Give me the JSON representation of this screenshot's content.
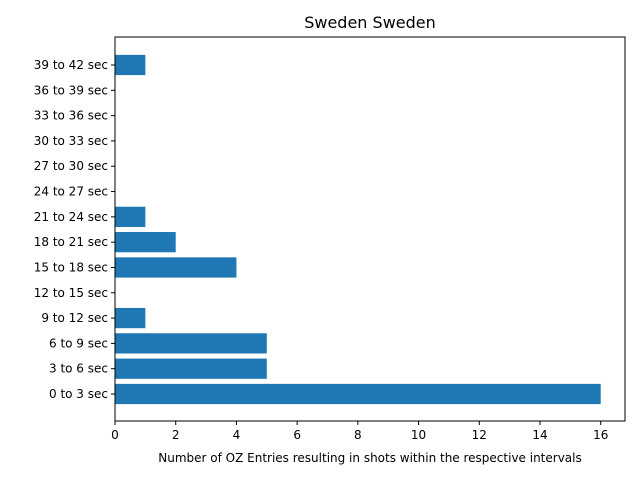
{
  "chart_data": {
    "type": "bar",
    "orientation": "horizontal",
    "title": "Sweden Sweden",
    "xlabel": "Number of OZ Entries resulting in shots within the respective intervals",
    "ylabel": "",
    "categories": [
      "0 to 3 sec",
      "3 to 6 sec",
      "6 to 9 sec",
      "9 to 12 sec",
      "12 to 15 sec",
      "15 to 18 sec",
      "18 to 21 sec",
      "21 to 24 sec",
      "24 to 27 sec",
      "27 to 30 sec",
      "30 to 33 sec",
      "33 to 36 sec",
      "36 to 39 sec",
      "39 to 42 sec"
    ],
    "values": [
      16,
      5,
      5,
      1,
      0,
      4,
      2,
      1,
      0,
      0,
      0,
      0,
      0,
      1
    ],
    "xlim": [
      0,
      16.8
    ],
    "xticks": [
      0,
      2,
      4,
      6,
      8,
      10,
      12,
      14,
      16
    ],
    "bar_color": "#1f77b4",
    "grid": false,
    "legend": "none"
  }
}
